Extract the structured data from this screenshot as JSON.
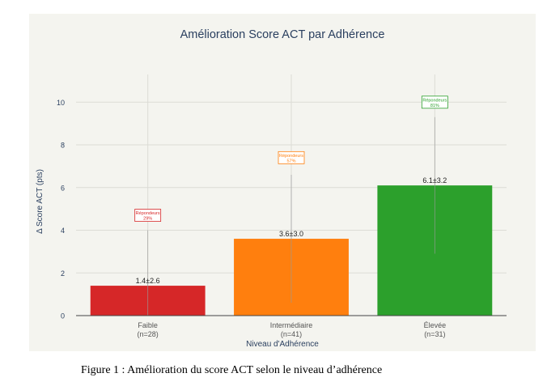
{
  "chart_data": {
    "type": "bar",
    "title": "Amélioration Score ACT par Adhérence",
    "xlabel": "Niveau d'Adhérence",
    "ylabel": "Δ Score ACT (pts)",
    "ylim": [
      0,
      11.3
    ],
    "yticks": [
      0,
      2,
      4,
      6,
      8,
      10
    ],
    "grid": true,
    "categories": [
      "Faible",
      "Intermédiaire",
      "Élevée"
    ],
    "category_sublabels": [
      "(n=28)",
      "(n=41)",
      "(n=31)"
    ],
    "values": [
      1.4,
      3.6,
      6.1
    ],
    "errors": [
      2.6,
      3.0,
      3.2
    ],
    "value_labels": [
      "1.4±2.6",
      "3.6±3.0",
      "6.1±3.2"
    ],
    "colors": [
      "#d62728",
      "#ff7f0e",
      "#2ca02c"
    ],
    "responder_labels": [
      "Répondeurs\n29%",
      "Répondeurs\n57%",
      "Répondeurs\n81%"
    ],
    "responder_positions": [
      4.7,
      7.4,
      10.0
    ]
  },
  "caption": "Figure 1 : Amélioration du score ACT selon le niveau d’adhérence"
}
